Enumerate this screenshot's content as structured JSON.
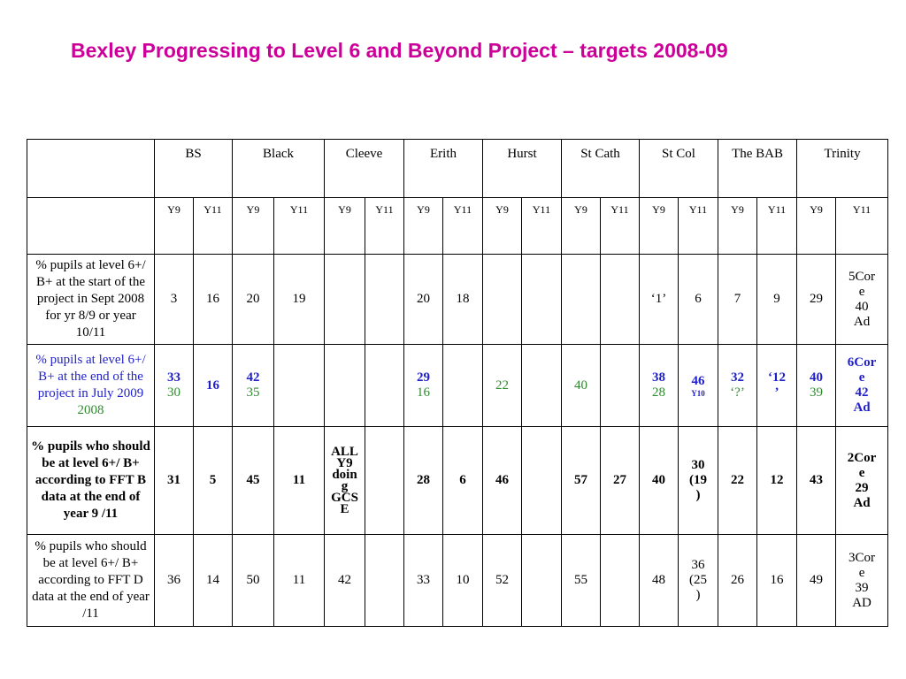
{
  "title": "Bexley Progressing to Level 6 and Beyond Project – targets 2008-09",
  "schools": [
    "BS",
    "Black",
    "Cleeve",
    "Erith",
    "Hurst",
    "St Cath",
    "St Col",
    "The BAB",
    "Trinity"
  ],
  "year_labels": [
    "Y9",
    "Y11"
  ],
  "rows": {
    "r1": {
      "label": "% pupils at level 6+/ B+ at the start of the project in Sept 2008 for yr 8/9 or year 10/11",
      "bs_y9": "3",
      "bs_y11": "16",
      "black_y9": "20",
      "black_y11": "19",
      "erith_y9": "20",
      "erith_y11": "18",
      "stcol_y9": "‘1’",
      "stcol_y11": "6",
      "bab_y9": "7",
      "bab_y11": "9",
      "trinity_y9": "29",
      "trinity_y11": [
        "5Cor",
        "e",
        "40",
        "Ad"
      ]
    },
    "r2": {
      "label_main": "% pupils at level 6+/ B+ at the end of the project in July 2009",
      "label_year2": "2008",
      "bs_y9": "33",
      "bs_y9_prev": "30",
      "bs_y11": "16",
      "black_y9": "42",
      "black_y9_prev": "35",
      "erith_y9": "29",
      "erith_y9_prev": "16",
      "hurst_y9": "22",
      "stcath_y9": "40",
      "stcol_y9": "38",
      "stcol_y9_prev": "28",
      "stcol_y11": "46",
      "stcol_y11_sub": "Y10",
      "bab_y9": "32",
      "bab_y9_prev": "‘?’",
      "bab_y11": [
        "‘12",
        "’"
      ],
      "trinity_y9": "40",
      "trinity_y9_prev": "39",
      "trinity_y11": [
        "6Cor",
        "e",
        "42",
        "Ad"
      ]
    },
    "r3": {
      "label": "% pupils who should be at level 6+/ B+ according to FFT B data at the end of year 9 /11",
      "bs_y9": "31",
      "bs_y11": "5",
      "black_y9": "45",
      "black_y11": "11",
      "cleeve_y9": [
        "ALL",
        "Y9",
        "doin",
        "g",
        "GCS",
        "E"
      ],
      "erith_y9": "28",
      "erith_y11": "6",
      "hurst_y9": "46",
      "stcath_y9": "57",
      "stcath_y11": "27",
      "stcol_y9": "40",
      "stcol_y11": [
        "30",
        "(19",
        ")"
      ],
      "bab_y9": "22",
      "bab_y11": "12",
      "trinity_y9": "43",
      "trinity_y11": [
        "2Cor",
        "e",
        "29",
        "Ad"
      ]
    },
    "r4": {
      "label": "% pupils who should be at level 6+/ B+ according to FFT D data at the end of year /11",
      "bs_y9": "36",
      "bs_y11": "14",
      "black_y9": "50",
      "black_y11": "11",
      "cleeve_y9": "42",
      "erith_y9": "33",
      "erith_y11": "10",
      "hurst_y9": "52",
      "stcath_y9": "55",
      "stcol_y9": "48",
      "stcol_y11": [
        "36",
        "(25",
        ")"
      ],
      "bab_y9": "26",
      "bab_y11": "16",
      "trinity_y9": "49",
      "trinity_y11": [
        "3Cor",
        "e",
        "39",
        "AD"
      ]
    }
  },
  "colors": {
    "title": "#cc0099",
    "target_blue": "#1f1fcc",
    "previous_green": "#2e8b2e"
  }
}
